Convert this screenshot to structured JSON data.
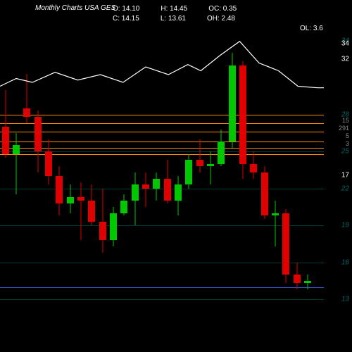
{
  "title": "Monthly Charts USA GES",
  "ohlc": {
    "o_label": "O:",
    "o_value": "14.10",
    "c_label": "C:",
    "c_value": "14.15",
    "h_label": "H:",
    "h_value": "14.45",
    "l_label": "L:",
    "l_value": "13.61",
    "oc_label": "OC:",
    "oc_value": "0.35",
    "oh_label": "OH:",
    "oh_value": "2.48",
    "ol_label": "OL:",
    "ol_value": "3.6"
  },
  "chart": {
    "type": "candlestick",
    "bg": "#000000",
    "up_color": "#00c800",
    "down_color": "#e00000",
    "wick_color_up": "#00c800",
    "wick_color_down": "#e00000",
    "grid_color": "#003838",
    "orange_line_color": "#ff8800",
    "blue_line_color": "#3355cc",
    "overlay_line_color": "#ffffff",
    "y_min": 11,
    "y_max": 35,
    "y_ticks_main": [
      13,
      16,
      19,
      22,
      25,
      28,
      34
    ],
    "y_ticks_overlay": [
      {
        "label": "34",
        "y": 34
      },
      {
        "label": "32",
        "y": 32
      },
      {
        "label": "17",
        "y": 17
      }
    ],
    "y_ticks_orange": [
      {
        "label": "15",
        "y": 15.2
      },
      {
        "label": "291",
        "y": 14.55
      },
      {
        "label": "5",
        "y": 13.7
      },
      {
        "label": "3",
        "y": 13.0
      }
    ],
    "orange_levels": [
      28.0,
      27.3,
      26.6,
      25.8,
      25.3,
      24.8
    ],
    "blue_level": 14.0,
    "grid_levels": [
      13,
      16,
      19,
      22,
      25,
      28
    ],
    "candles": [
      {
        "o": 27.0,
        "h": 30.0,
        "l": 24.5,
        "c": 24.8
      },
      {
        "o": 24.8,
        "h": 26.5,
        "l": 21.5,
        "c": 25.5
      },
      {
        "o": 28.5,
        "h": 31.3,
        "l": 27.3,
        "c": 27.8
      },
      {
        "o": 27.8,
        "h": 28.3,
        "l": 23.3,
        "c": 25.0
      },
      {
        "o": 25.0,
        "h": 26.0,
        "l": 22.3,
        "c": 23.0
      },
      {
        "o": 23.0,
        "h": 23.8,
        "l": 19.8,
        "c": 20.8
      },
      {
        "o": 20.8,
        "h": 22.3,
        "l": 20.0,
        "c": 21.3
      },
      {
        "o": 21.3,
        "h": 22.5,
        "l": 17.8,
        "c": 21.0
      },
      {
        "o": 21.0,
        "h": 22.3,
        "l": 19.0,
        "c": 19.3
      },
      {
        "o": 19.3,
        "h": 22.0,
        "l": 16.8,
        "c": 17.8
      },
      {
        "o": 17.8,
        "h": 20.5,
        "l": 17.3,
        "c": 20.0
      },
      {
        "o": 20.0,
        "h": 21.5,
        "l": 19.8,
        "c": 21.0
      },
      {
        "o": 21.0,
        "h": 23.3,
        "l": 19.0,
        "c": 22.3
      },
      {
        "o": 22.3,
        "h": 23.3,
        "l": 20.5,
        "c": 22.0
      },
      {
        "o": 22.0,
        "h": 23.3,
        "l": 21.0,
        "c": 22.8
      },
      {
        "o": 22.8,
        "h": 24.3,
        "l": 20.8,
        "c": 21.0
      },
      {
        "o": 21.0,
        "h": 23.0,
        "l": 19.8,
        "c": 22.3
      },
      {
        "o": 22.3,
        "h": 24.8,
        "l": 22.0,
        "c": 24.3
      },
      {
        "o": 24.3,
        "h": 26.0,
        "l": 23.3,
        "c": 23.8
      },
      {
        "o": 23.8,
        "h": 25.0,
        "l": 22.3,
        "c": 24.0
      },
      {
        "o": 24.0,
        "h": 26.8,
        "l": 23.8,
        "c": 25.8
      },
      {
        "o": 25.8,
        "h": 33.0,
        "l": 25.3,
        "c": 32.0
      },
      {
        "o": 32.0,
        "h": 32.3,
        "l": 22.8,
        "c": 24.0
      },
      {
        "o": 24.0,
        "h": 25.0,
        "l": 22.8,
        "c": 23.3
      },
      {
        "o": 23.3,
        "h": 23.8,
        "l": 19.5,
        "c": 19.8
      },
      {
        "o": 19.8,
        "h": 21.0,
        "l": 17.3,
        "c": 20.0
      },
      {
        "o": 20.0,
        "h": 20.3,
        "l": 14.3,
        "c": 15.0
      },
      {
        "o": 15.0,
        "h": 16.0,
        "l": 13.8,
        "c": 14.3
      },
      {
        "o": 14.3,
        "h": 15.0,
        "l": 13.8,
        "c": 14.5
      }
    ],
    "overlay_points": [
      {
        "x": 0.0,
        "y": 28.5
      },
      {
        "x": 0.05,
        "y": 29.5
      },
      {
        "x": 0.1,
        "y": 29.0
      },
      {
        "x": 0.17,
        "y": 30.3
      },
      {
        "x": 0.24,
        "y": 29.3
      },
      {
        "x": 0.31,
        "y": 30.0
      },
      {
        "x": 0.38,
        "y": 29.0
      },
      {
        "x": 0.45,
        "y": 31.0
      },
      {
        "x": 0.52,
        "y": 30.0
      },
      {
        "x": 0.58,
        "y": 31.3
      },
      {
        "x": 0.62,
        "y": 30.5
      },
      {
        "x": 0.68,
        "y": 32.5
      },
      {
        "x": 0.74,
        "y": 34.3
      },
      {
        "x": 0.8,
        "y": 31.5
      },
      {
        "x": 0.86,
        "y": 30.5
      },
      {
        "x": 0.92,
        "y": 28.5
      },
      {
        "x": 0.98,
        "y": 28.3
      },
      {
        "x": 1.0,
        "y": 28.3
      }
    ]
  }
}
